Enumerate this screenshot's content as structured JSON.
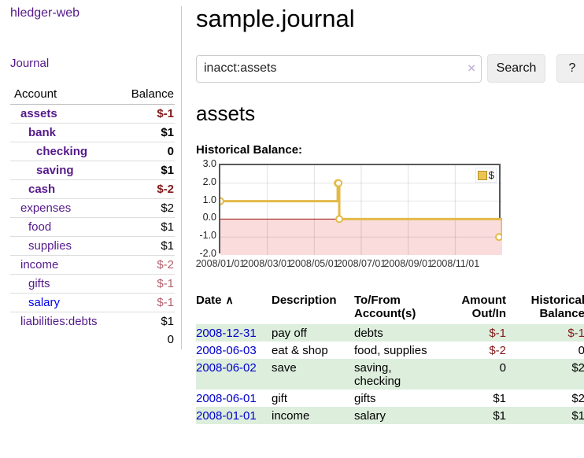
{
  "sidebar": {
    "brand": "hledger-web",
    "journal_link": "Journal",
    "accounts": {
      "col_account": "Account",
      "col_balance": "Balance",
      "rows": [
        {
          "name": "assets",
          "balance": "$-1",
          "indent": 1,
          "bold": true,
          "negative": "strong",
          "link": "purple"
        },
        {
          "name": "bank",
          "balance": "$1",
          "indent": 2,
          "bold": true,
          "negative": "none",
          "link": "purple"
        },
        {
          "name": "checking",
          "balance": "0",
          "indent": 3,
          "bold": true,
          "negative": "none",
          "link": "purple"
        },
        {
          "name": "saving",
          "balance": "$1",
          "indent": 3,
          "bold": true,
          "negative": "none",
          "link": "purple"
        },
        {
          "name": "cash",
          "balance": "$-2",
          "indent": 2,
          "bold": true,
          "negative": "strong",
          "link": "purple"
        },
        {
          "name": "expenses",
          "balance": "$2",
          "indent": 1,
          "bold": false,
          "negative": "none",
          "link": "purple"
        },
        {
          "name": "food",
          "balance": "$1",
          "indent": 2,
          "bold": false,
          "negative": "none",
          "link": "purple"
        },
        {
          "name": "supplies",
          "balance": "$1",
          "indent": 2,
          "bold": false,
          "negative": "none",
          "link": "purple"
        },
        {
          "name": "income",
          "balance": "$-2",
          "indent": 1,
          "bold": false,
          "negative": "muted",
          "link": "purple"
        },
        {
          "name": "gifts",
          "balance": "$-1",
          "indent": 2,
          "bold": false,
          "negative": "muted",
          "link": "purple"
        },
        {
          "name": "salary",
          "balance": "$-1",
          "indent": 2,
          "bold": false,
          "negative": "muted",
          "link": "blue"
        },
        {
          "name": "liabilities:debts",
          "balance": "$1",
          "indent": 1,
          "bold": false,
          "negative": "none",
          "link": "purple"
        }
      ],
      "total": "0"
    }
  },
  "main": {
    "title": "sample.journal",
    "search": {
      "value": "inacct:assets",
      "button_label": "Search",
      "help_label": "?",
      "clear_icon": "×"
    },
    "account_heading": "assets",
    "chart_label": "Historical Balance:"
  },
  "chart_data": {
    "type": "line",
    "title": "Historical Balance",
    "step": "before",
    "legend": [
      {
        "label": "$",
        "color": "#ecc452"
      }
    ],
    "x_tick_labels": [
      "2008/01/01",
      "2008/03/01",
      "2008/05/01",
      "2008/07/01",
      "2008/09/01",
      "2008/11/01"
    ],
    "y_tick_labels": [
      "3.0",
      "2.0",
      "1.0",
      "0.0",
      "-1.0",
      "-2.0"
    ],
    "y_ticks": [
      3,
      2,
      1,
      0,
      -1,
      -2
    ],
    "ylim": [
      -2,
      3
    ],
    "x_range_days": [
      0,
      365
    ],
    "points": [
      {
        "date": "2008-01-01",
        "day": 0,
        "value": 1
      },
      {
        "date": "2008-06-01",
        "day": 152,
        "value": 2
      },
      {
        "date": "2008-06-02",
        "day": 153,
        "value": 2
      },
      {
        "date": "2008-06-03",
        "day": 154,
        "value": 0
      },
      {
        "date": "2008-12-31",
        "day": 365,
        "value": -1
      }
    ],
    "colors": {
      "series": "#e3ba48",
      "marker_fill": "#ffffff",
      "negative_region": "#fadcdc",
      "zero_line": "#9c0c0c",
      "grid": "#dddddd",
      "border": "#595959"
    }
  },
  "register": {
    "sort_icon": "∧",
    "columns": [
      "Date",
      "Description",
      "To/From Account(s)",
      "Amount Out/In",
      "Historical Balance"
    ],
    "rows": [
      {
        "date": "2008-12-31",
        "description": "pay off",
        "accounts": "debts",
        "amount": "$-1",
        "balance": "$-1",
        "amount_negative": true,
        "balance_negative": true,
        "striped": true
      },
      {
        "date": "2008-06-03",
        "description": "eat & shop",
        "accounts": "food, supplies",
        "amount": "$-2",
        "balance": "0",
        "amount_negative": true,
        "balance_negative": false,
        "striped": false
      },
      {
        "date": "2008-06-02",
        "description": "save",
        "accounts": "saving, checking",
        "amount": "0",
        "balance": "$2",
        "amount_negative": false,
        "balance_negative": false,
        "striped": true
      },
      {
        "date": "2008-06-01",
        "description": "gift",
        "accounts": "gifts",
        "amount": "$1",
        "balance": "$2",
        "amount_negative": false,
        "balance_negative": false,
        "striped": false
      },
      {
        "date": "2008-01-01",
        "description": "income",
        "accounts": "salary",
        "amount": "$1",
        "balance": "$1",
        "amount_negative": false,
        "balance_negative": false,
        "striped": true
      }
    ]
  }
}
